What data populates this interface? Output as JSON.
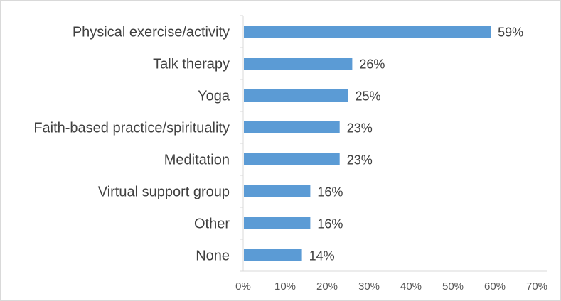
{
  "chart_data": {
    "type": "bar",
    "orientation": "horizontal",
    "categories": [
      "Physical exercise/activity",
      "Talk therapy",
      "Yoga",
      "Faith-based practice/spirituality",
      "Meditation",
      "Virtual support group",
      "Other",
      "None"
    ],
    "values": [
      59,
      26,
      25,
      23,
      23,
      16,
      16,
      14
    ],
    "value_labels": [
      "59%",
      "26%",
      "25%",
      "23%",
      "23%",
      "16%",
      "16%",
      "14%"
    ],
    "x_ticks": [
      "0%",
      "10%",
      "20%",
      "30%",
      "40%",
      "50%",
      "60%",
      "70%"
    ],
    "xlim": [
      0,
      70
    ],
    "title": "",
    "xlabel": "",
    "ylabel": "",
    "grid": false,
    "legend": "none",
    "bar_color": "#5b9bd5",
    "axis_color": "#d9d9d9",
    "text_color": "#404040"
  }
}
